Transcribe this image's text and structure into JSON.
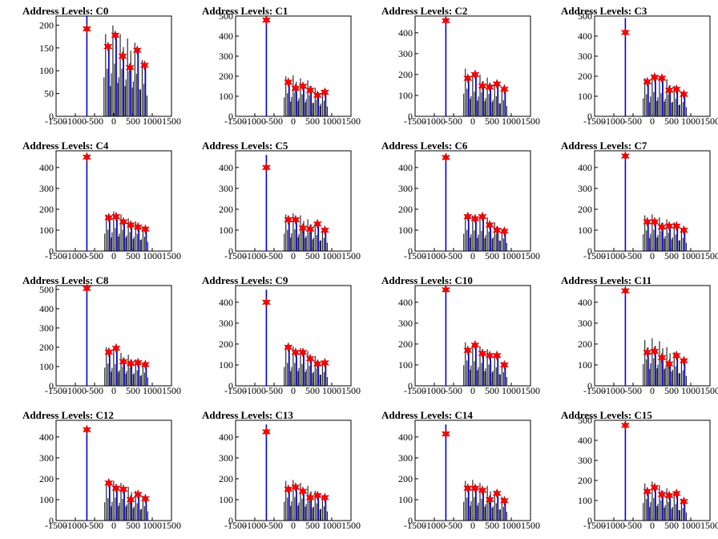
{
  "figure": {
    "title_prefix": "Address Levels: "
  },
  "chart_data": [
    {
      "type": "bar",
      "title": "Address Levels: C0",
      "xlim": [
        -1500,
        1500
      ],
      "ylim": [
        0,
        220
      ],
      "xticks": [
        -1500,
        -1000,
        -500,
        0,
        500,
        1000,
        1500
      ],
      "yticks": [
        0,
        50,
        100,
        150,
        200
      ],
      "grid": false,
      "peaks": [
        {
          "x": -700,
          "y": 192,
          "bar": 220
        },
        {
          "x": -150,
          "y": 153,
          "bar": 190
        },
        {
          "x": 40,
          "y": 178,
          "bar": 210
        },
        {
          "x": 230,
          "y": 132,
          "bar": 190
        },
        {
          "x": 420,
          "y": 107,
          "bar": 180
        },
        {
          "x": 610,
          "y": 145,
          "bar": 170
        },
        {
          "x": 800,
          "y": 112,
          "bar": 130
        }
      ]
    },
    {
      "type": "bar",
      "title": "Address Levels: C1",
      "xlim": [
        -1500,
        1500
      ],
      "ylim": [
        0,
        500
      ],
      "xticks": [
        -1500,
        -1000,
        -500,
        0,
        500,
        1000,
        1500
      ],
      "yticks": [
        0,
        100,
        200,
        300,
        400,
        500
      ],
      "grid": false,
      "peaks": [
        {
          "x": -700,
          "y": 480,
          "bar": 480
        },
        {
          "x": -130,
          "y": 170,
          "bar": 210
        },
        {
          "x": 60,
          "y": 140,
          "bar": 215
        },
        {
          "x": 250,
          "y": 150,
          "bar": 200
        },
        {
          "x": 440,
          "y": 130,
          "bar": 190
        },
        {
          "x": 630,
          "y": 105,
          "bar": 150
        },
        {
          "x": 820,
          "y": 120,
          "bar": 140
        }
      ]
    },
    {
      "type": "bar",
      "title": "Address Levels: C2",
      "xlim": [
        -1500,
        1500
      ],
      "ylim": [
        0,
        480
      ],
      "xticks": [
        -1500,
        -1000,
        -500,
        0,
        500,
        1000,
        1500
      ],
      "yticks": [
        0,
        100,
        200,
        300,
        400
      ],
      "grid": false,
      "peaks": [
        {
          "x": -700,
          "y": 458,
          "bar": 458
        },
        {
          "x": -130,
          "y": 182,
          "bar": 240
        },
        {
          "x": 60,
          "y": 200,
          "bar": 215
        },
        {
          "x": 250,
          "y": 145,
          "bar": 210
        },
        {
          "x": 440,
          "y": 140,
          "bar": 195
        },
        {
          "x": 630,
          "y": 155,
          "bar": 175
        },
        {
          "x": 820,
          "y": 130,
          "bar": 140
        }
      ]
    },
    {
      "type": "bar",
      "title": "Address Levels: C3",
      "xlim": [
        -1500,
        1500
      ],
      "ylim": [
        0,
        500
      ],
      "xticks": [
        -1500,
        -1000,
        -500,
        0,
        500,
        1000,
        1500
      ],
      "yticks": [
        0,
        100,
        200,
        300,
        400,
        500
      ],
      "grid": false,
      "peaks": [
        {
          "x": -700,
          "y": 418,
          "bar": 490
        },
        {
          "x": -130,
          "y": 172,
          "bar": 200
        },
        {
          "x": 60,
          "y": 195,
          "bar": 220
        },
        {
          "x": 250,
          "y": 190,
          "bar": 210
        },
        {
          "x": 440,
          "y": 130,
          "bar": 195
        },
        {
          "x": 630,
          "y": 135,
          "bar": 160
        },
        {
          "x": 820,
          "y": 110,
          "bar": 130
        }
      ]
    },
    {
      "type": "bar",
      "title": "Address Levels: C4",
      "xlim": [
        -1500,
        1500
      ],
      "ylim": [
        0,
        480
      ],
      "xticks": [
        -1500,
        -1000,
        -500,
        0,
        500,
        1000,
        1500
      ],
      "yticks": [
        0,
        100,
        200,
        300,
        400
      ],
      "grid": false,
      "peaks": [
        {
          "x": -700,
          "y": 450,
          "bar": 450
        },
        {
          "x": -130,
          "y": 160,
          "bar": 185
        },
        {
          "x": 60,
          "y": 165,
          "bar": 200
        },
        {
          "x": 250,
          "y": 140,
          "bar": 185
        },
        {
          "x": 440,
          "y": 125,
          "bar": 165
        },
        {
          "x": 630,
          "y": 115,
          "bar": 150
        },
        {
          "x": 820,
          "y": 105,
          "bar": 125
        }
      ]
    },
    {
      "type": "bar",
      "title": "Address Levels: C5",
      "xlim": [
        -1500,
        1500
      ],
      "ylim": [
        0,
        480
      ],
      "xticks": [
        -1500,
        -1000,
        -500,
        0,
        500,
        1000,
        1500
      ],
      "yticks": [
        0,
        100,
        200,
        300,
        400
      ],
      "grid": false,
      "peaks": [
        {
          "x": -700,
          "y": 400,
          "bar": 460
        },
        {
          "x": -130,
          "y": 150,
          "bar": 185
        },
        {
          "x": 60,
          "y": 150,
          "bar": 190
        },
        {
          "x": 250,
          "y": 110,
          "bar": 180
        },
        {
          "x": 440,
          "y": 105,
          "bar": 160
        },
        {
          "x": 630,
          "y": 130,
          "bar": 140
        },
        {
          "x": 820,
          "y": 100,
          "bar": 115
        }
      ]
    },
    {
      "type": "bar",
      "title": "Address Levels: C6",
      "xlim": [
        -1500,
        1500
      ],
      "ylim": [
        0,
        480
      ],
      "xticks": [
        -1500,
        -1000,
        -500,
        0,
        500,
        1000,
        1500
      ],
      "yticks": [
        0,
        100,
        200,
        300,
        400
      ],
      "grid": false,
      "peaks": [
        {
          "x": -700,
          "y": 448,
          "bar": 448
        },
        {
          "x": -130,
          "y": 165,
          "bar": 185
        },
        {
          "x": 60,
          "y": 155,
          "bar": 180
        },
        {
          "x": 250,
          "y": 165,
          "bar": 175
        },
        {
          "x": 440,
          "y": 125,
          "bar": 170
        },
        {
          "x": 630,
          "y": 100,
          "bar": 145
        },
        {
          "x": 820,
          "y": 95,
          "bar": 110
        }
      ]
    },
    {
      "type": "bar",
      "title": "Address Levels: C7",
      "xlim": [
        -1500,
        1500
      ],
      "ylim": [
        0,
        480
      ],
      "xticks": [
        -1500,
        -1000,
        -500,
        0,
        500,
        1000,
        1500
      ],
      "yticks": [
        0,
        100,
        200,
        300,
        400
      ],
      "grid": false,
      "peaks": [
        {
          "x": -700,
          "y": 455,
          "bar": 455
        },
        {
          "x": -130,
          "y": 140,
          "bar": 180
        },
        {
          "x": 60,
          "y": 140,
          "bar": 185
        },
        {
          "x": 250,
          "y": 115,
          "bar": 170
        },
        {
          "x": 440,
          "y": 120,
          "bar": 160
        },
        {
          "x": 630,
          "y": 120,
          "bar": 145
        },
        {
          "x": 820,
          "y": 100,
          "bar": 115
        }
      ]
    },
    {
      "type": "bar",
      "title": "Address Levels: C8",
      "xlim": [
        -1500,
        1500
      ],
      "ylim": [
        0,
        520
      ],
      "xticks": [
        -1500,
        -1000,
        -500,
        0,
        500,
        1000,
        1500
      ],
      "yticks": [
        0,
        100,
        200,
        300,
        400,
        500
      ],
      "grid": false,
      "peaks": [
        {
          "x": -700,
          "y": 505,
          "bar": 505
        },
        {
          "x": -130,
          "y": 175,
          "bar": 210
        },
        {
          "x": 60,
          "y": 195,
          "bar": 205
        },
        {
          "x": 250,
          "y": 125,
          "bar": 180
        },
        {
          "x": 440,
          "y": 115,
          "bar": 170
        },
        {
          "x": 630,
          "y": 120,
          "bar": 145
        },
        {
          "x": 820,
          "y": 110,
          "bar": 125
        }
      ]
    },
    {
      "type": "bar",
      "title": "Address Levels: C9",
      "xlim": [
        -1500,
        1500
      ],
      "ylim": [
        0,
        480
      ],
      "xticks": [
        -1500,
        -1000,
        -500,
        0,
        500,
        1000,
        1500
      ],
      "yticks": [
        0,
        100,
        200,
        300,
        400
      ],
      "grid": false,
      "peaks": [
        {
          "x": -700,
          "y": 400,
          "bar": 460
        },
        {
          "x": -130,
          "y": 185,
          "bar": 200
        },
        {
          "x": 60,
          "y": 160,
          "bar": 200
        },
        {
          "x": 250,
          "y": 160,
          "bar": 190
        },
        {
          "x": 440,
          "y": 130,
          "bar": 175
        },
        {
          "x": 630,
          "y": 105,
          "bar": 150
        },
        {
          "x": 820,
          "y": 110,
          "bar": 120
        }
      ]
    },
    {
      "type": "bar",
      "title": "Address Levels: C10",
      "xlim": [
        -1500,
        1500
      ],
      "ylim": [
        0,
        480
      ],
      "xticks": [
        -1500,
        -1000,
        -500,
        0,
        500,
        1000,
        1500
      ],
      "yticks": [
        0,
        100,
        200,
        300,
        400
      ],
      "grid": false,
      "peaks": [
        {
          "x": -700,
          "y": 460,
          "bar": 460
        },
        {
          "x": -130,
          "y": 170,
          "bar": 220
        },
        {
          "x": 60,
          "y": 195,
          "bar": 215
        },
        {
          "x": 250,
          "y": 155,
          "bar": 200
        },
        {
          "x": 440,
          "y": 145,
          "bar": 185
        },
        {
          "x": 630,
          "y": 145,
          "bar": 160
        },
        {
          "x": 820,
          "y": 100,
          "bar": 120
        }
      ]
    },
    {
      "type": "bar",
      "title": "Address Levels: C11",
      "xlim": [
        -1500,
        1500
      ],
      "ylim": [
        0,
        480
      ],
      "xticks": [
        -1500,
        -1000,
        -500,
        0,
        500,
        1000,
        1500
      ],
      "yticks": [
        0,
        100,
        200,
        300,
        400
      ],
      "grid": false,
      "peaks": [
        {
          "x": -700,
          "y": 455,
          "bar": 455
        },
        {
          "x": -130,
          "y": 160,
          "bar": 230
        },
        {
          "x": 60,
          "y": 165,
          "bar": 240
        },
        {
          "x": 250,
          "y": 135,
          "bar": 225
        },
        {
          "x": 440,
          "y": 105,
          "bar": 195
        },
        {
          "x": 630,
          "y": 145,
          "bar": 170
        },
        {
          "x": 820,
          "y": 120,
          "bar": 135
        }
      ]
    },
    {
      "type": "bar",
      "title": "Address Levels: C12",
      "xlim": [
        -1500,
        1500
      ],
      "ylim": [
        0,
        480
      ],
      "xticks": [
        -1500,
        -1000,
        -500,
        0,
        500,
        1000,
        1500
      ],
      "yticks": [
        0,
        100,
        200,
        300,
        400
      ],
      "grid": false,
      "peaks": [
        {
          "x": -700,
          "y": 435,
          "bar": 440
        },
        {
          "x": -130,
          "y": 180,
          "bar": 195
        },
        {
          "x": 60,
          "y": 155,
          "bar": 200
        },
        {
          "x": 250,
          "y": 150,
          "bar": 190
        },
        {
          "x": 440,
          "y": 100,
          "bar": 170
        },
        {
          "x": 630,
          "y": 125,
          "bar": 150
        },
        {
          "x": 820,
          "y": 105,
          "bar": 125
        }
      ]
    },
    {
      "type": "bar",
      "title": "Address Levels: C13",
      "xlim": [
        -1500,
        1500
      ],
      "ylim": [
        0,
        480
      ],
      "xticks": [
        -1500,
        -1000,
        -500,
        0,
        500,
        1000,
        1500
      ],
      "yticks": [
        0,
        100,
        200,
        300,
        400
      ],
      "grid": false,
      "peaks": [
        {
          "x": -700,
          "y": 425,
          "bar": 460
        },
        {
          "x": -130,
          "y": 150,
          "bar": 200
        },
        {
          "x": 60,
          "y": 160,
          "bar": 205
        },
        {
          "x": 250,
          "y": 140,
          "bar": 190
        },
        {
          "x": 440,
          "y": 110,
          "bar": 175
        },
        {
          "x": 630,
          "y": 120,
          "bar": 150
        },
        {
          "x": 820,
          "y": 110,
          "bar": 125
        }
      ]
    },
    {
      "type": "bar",
      "title": "Address Levels: C14",
      "xlim": [
        -1500,
        1500
      ],
      "ylim": [
        0,
        480
      ],
      "xticks": [
        -1500,
        -1000,
        -500,
        0,
        500,
        1000,
        1500
      ],
      "yticks": [
        0,
        100,
        200,
        300,
        400
      ],
      "grid": false,
      "peaks": [
        {
          "x": -700,
          "y": 415,
          "bar": 460
        },
        {
          "x": -130,
          "y": 155,
          "bar": 200
        },
        {
          "x": 60,
          "y": 155,
          "bar": 205
        },
        {
          "x": 250,
          "y": 145,
          "bar": 190
        },
        {
          "x": 440,
          "y": 100,
          "bar": 175
        },
        {
          "x": 630,
          "y": 130,
          "bar": 150
        },
        {
          "x": 820,
          "y": 95,
          "bar": 120
        }
      ]
    },
    {
      "type": "bar",
      "title": "Address Levels: C15",
      "xlim": [
        -1500,
        1500
      ],
      "ylim": [
        0,
        500
      ],
      "xticks": [
        -1500,
        -1000,
        -500,
        0,
        500,
        1000,
        1500
      ],
      "yticks": [
        0,
        100,
        200,
        300,
        400,
        500
      ],
      "grid": false,
      "peaks": [
        {
          "x": -700,
          "y": 475,
          "bar": 490
        },
        {
          "x": -130,
          "y": 145,
          "bar": 195
        },
        {
          "x": 60,
          "y": 165,
          "bar": 205
        },
        {
          "x": 250,
          "y": 130,
          "bar": 185
        },
        {
          "x": 440,
          "y": 125,
          "bar": 170
        },
        {
          "x": 630,
          "y": 135,
          "bar": 150
        },
        {
          "x": 820,
          "y": 95,
          "bar": 115
        }
      ]
    }
  ],
  "colors": {
    "bar_primary": "#0000cc",
    "bar_secondary": "#000000",
    "star_fill": "#ff0000",
    "star_stroke": "#cc0000",
    "axis": "#000000"
  },
  "markers": {
    "peak_icon": "star-icon"
  }
}
